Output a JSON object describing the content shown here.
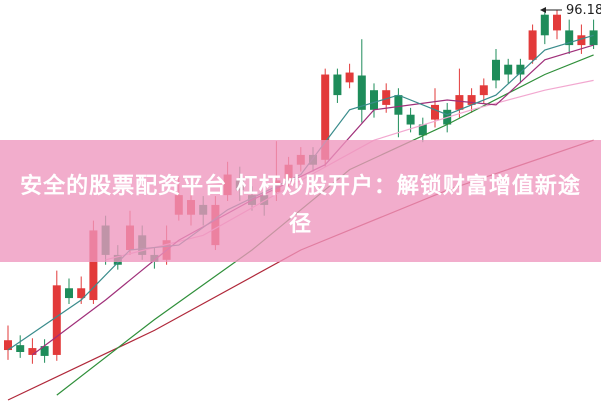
{
  "chart_data": {
    "type": "candlestick",
    "high_label": "96.18",
    "ylim": [
      56,
      97
    ],
    "up_color": "#e23a3a",
    "down_color": "#1e8c5a",
    "open": [
      61.3,
      61.8,
      60.8,
      61.7,
      60.8,
      67.6,
      66.6,
      66.4,
      74.0,
      71.0,
      71.5,
      73.0,
      71.0,
      70.5,
      75.1,
      75.1,
      76.1,
      72.0,
      77.1,
      78.6,
      77.1,
      77.1,
      77.4,
      78.6,
      80.2,
      81.2,
      80.7,
      89.4,
      88.6,
      89.3,
      87.8,
      86.3,
      87.3,
      85.3,
      84.3,
      84.8,
      85.8,
      85.8,
      86.3,
      87.3,
      90.9,
      90.4,
      90.4,
      90.9,
      95.5,
      93.9,
      93.9,
      92.4,
      93.9
    ],
    "high": [
      63.8,
      62.8,
      62.5,
      62.4,
      69.4,
      68.6,
      68.8,
      74.5,
      75.0,
      72.0,
      75.5,
      74.0,
      71.8,
      74.0,
      79.0,
      78.0,
      77.0,
      77.0,
      80.5,
      80.0,
      78.0,
      77.5,
      82.6,
      81.0,
      82.0,
      82.0,
      90.0,
      90.0,
      90.5,
      93.0,
      88.5,
      88.5,
      88.0,
      86.0,
      85.0,
      88.0,
      86.5,
      90.0,
      88.0,
      89.0,
      92.0,
      91.0,
      91.0,
      94.5,
      96.18,
      96.0,
      95.0,
      94.5,
      95.0
    ],
    "low": [
      60.3,
      60.5,
      59.9,
      60.0,
      60.2,
      66.0,
      66.0,
      66.0,
      70.0,
      69.5,
      71.0,
      70.5,
      69.6,
      70.0,
      74.5,
      74.0,
      74.0,
      71.5,
      76.5,
      76.5,
      75.5,
      75.0,
      76.5,
      78.0,
      79.5,
      79.5,
      80.0,
      86.5,
      88.0,
      84.5,
      85.0,
      85.5,
      83.0,
      83.5,
      82.5,
      84.0,
      83.5,
      85.0,
      85.5,
      86.5,
      88.0,
      88.5,
      88.5,
      90.5,
      92.5,
      93.0,
      91.5,
      91.5,
      92.0
    ],
    "close": [
      62.3,
      61.1,
      61.5,
      60.7,
      67.9,
      66.6,
      67.6,
      73.5,
      71.0,
      70.0,
      74.0,
      71.0,
      70.3,
      72.5,
      77.1,
      76.6,
      75.1,
      76.1,
      79.2,
      77.6,
      76.1,
      76.1,
      78.6,
      80.2,
      81.2,
      80.2,
      89.4,
      87.3,
      89.6,
      85.8,
      85.8,
      87.8,
      85.3,
      84.3,
      83.2,
      86.3,
      84.3,
      87.3,
      87.3,
      88.3,
      88.8,
      89.4,
      89.4,
      93.9,
      93.4,
      95.5,
      92.4,
      93.4,
      92.4
    ],
    "lines": [
      {
        "color": "#b0283a",
        "x": [
          0,
          12,
          24,
          36,
          48
        ],
        "values": [
          56.2,
          63.3,
          71.5,
          77.6,
          82.7
        ]
      },
      {
        "color": "#2f8f3a",
        "x": [
          4,
          12,
          20,
          28,
          36,
          44,
          48
        ],
        "values": [
          56.7,
          64.4,
          71.5,
          79.7,
          84.3,
          89.4,
          91.4
        ]
      },
      {
        "color": "#f2a8d0",
        "x": [
          8,
          16,
          24,
          30,
          38,
          44,
          48
        ],
        "values": [
          70.5,
          73.0,
          78.6,
          82.7,
          85.8,
          87.8,
          88.8
        ]
      },
      {
        "color": "#a0307a",
        "x": [
          2,
          8,
          14,
          20,
          26,
          30,
          36,
          40,
          44,
          48
        ],
        "values": [
          60.8,
          66.4,
          72.5,
          76.6,
          80.2,
          85.8,
          86.8,
          86.3,
          90.9,
          92.4
        ]
      },
      {
        "color": "#3a8c8c",
        "x": [
          0,
          6,
          10,
          14,
          18,
          24,
          28,
          32,
          36,
          40,
          44,
          48
        ],
        "values": [
          61.3,
          66.4,
          71.5,
          72.0,
          75.6,
          79.2,
          85.8,
          87.3,
          85.3,
          87.3,
          91.9,
          93.4
        ]
      }
    ]
  },
  "banner": {
    "title": "安全的股票配资平台 杠杆炒股开户：解锁财富增值新途径"
  }
}
